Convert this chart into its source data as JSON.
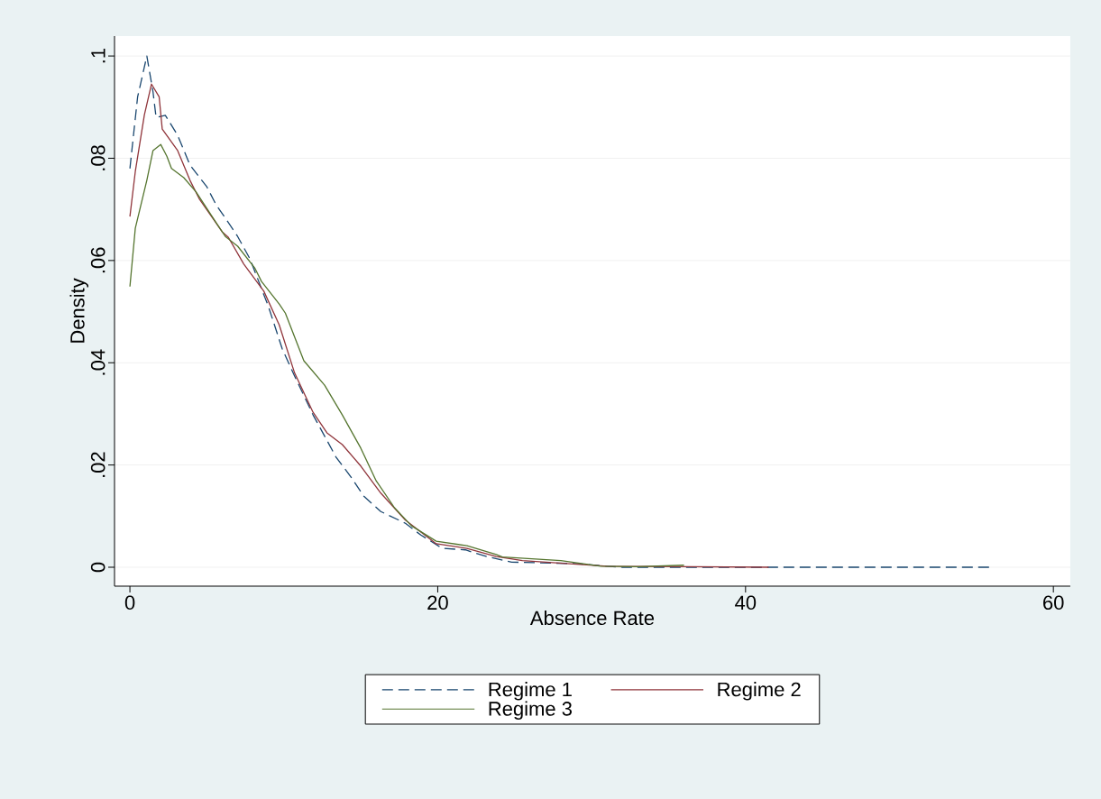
{
  "chart_data": {
    "type": "line",
    "xlabel": "Absence Rate",
    "ylabel": "Density",
    "xlim": [
      -1,
      61.1
    ],
    "ylim": [
      -0.0037,
      0.1039
    ],
    "xticks": [
      0,
      20,
      40,
      60
    ],
    "yticks": [
      {
        "value": 0,
        "label": "0"
      },
      {
        "value": 0.02,
        "label": ".02"
      },
      {
        "value": 0.04,
        "label": ".04"
      },
      {
        "value": 0.06,
        "label": ".06"
      },
      {
        "value": 0.08,
        "label": ".08"
      },
      {
        "value": 0.1,
        "label": ".1"
      }
    ],
    "grid": "y",
    "legend": "bottom",
    "series": [
      {
        "name": "Regime 1",
        "color": "#1a476f",
        "line_style": "dashed",
        "x": [
          0,
          0.5,
          1.1,
          1.5,
          1.7,
          2.3,
          3.1,
          3.9,
          5.0,
          5.6,
          6.4,
          7.0,
          7.8,
          9.0,
          9.9,
          10.7,
          11.9,
          13.4,
          14.4,
          15.2,
          16.3,
          17.9,
          18.9,
          20.3,
          21.8,
          22.2,
          23.2,
          24.8,
          29.1,
          31,
          32,
          56
        ],
        "values": [
          0.078,
          0.092,
          0.1,
          0.093,
          0.088,
          0.0884,
          0.0845,
          0.0787,
          0.0744,
          0.0709,
          0.0674,
          0.0647,
          0.0603,
          0.051,
          0.0427,
          0.0374,
          0.0298,
          0.0215,
          0.0175,
          0.0139,
          0.0109,
          0.0086,
          0.0063,
          0.0037,
          0.0034,
          0.003,
          0.0021,
          0.001,
          0.0007,
          0.0002,
          0,
          0
        ]
      },
      {
        "name": "Regime 2",
        "color": "#90353b",
        "line_style": "solid",
        "x": [
          0,
          0.35,
          0.94,
          1.4,
          1.9,
          2.1,
          3.1,
          3.9,
          4.5,
          6.0,
          6.4,
          7.4,
          8.7,
          9.7,
          10.7,
          11.9,
          12.8,
          13.8,
          15,
          16.3,
          17.9,
          19.9,
          21.9,
          23.8,
          25.5,
          29,
          31,
          41.5
        ],
        "values": [
          0.0686,
          0.0774,
          0.0885,
          0.0945,
          0.092,
          0.0857,
          0.0815,
          0.0757,
          0.0721,
          0.0656,
          0.0645,
          0.0593,
          0.054,
          0.0474,
          0.038,
          0.0303,
          0.0263,
          0.024,
          0.0198,
          0.0145,
          0.0092,
          0.0046,
          0.0037,
          0.0021,
          0.0013,
          0.0006,
          0.0002,
          0
        ]
      },
      {
        "name": "Regime 3",
        "color": "#55752f",
        "line_style": "solid",
        "x": [
          0,
          0.35,
          1.1,
          1.5,
          2.0,
          2.4,
          2.7,
          3.5,
          4.3,
          5.6,
          6.2,
          7.0,
          8.1,
          8.55,
          9.7,
          10.1,
          11.3,
          12.65,
          13.8,
          15,
          16,
          17.2,
          18.3,
          19.9,
          21.9,
          23.8,
          24.2,
          28,
          30.6,
          33,
          36
        ],
        "values": [
          0.0549,
          0.0663,
          0.0757,
          0.0815,
          0.0827,
          0.0804,
          0.078,
          0.0762,
          0.0734,
          0.0674,
          0.0647,
          0.0628,
          0.0586,
          0.0559,
          0.0515,
          0.0497,
          0.0404,
          0.0356,
          0.0298,
          0.0233,
          0.0169,
          0.0116,
          0.0081,
          0.0051,
          0.0042,
          0.0025,
          0.002,
          0.0013,
          0.0002,
          0.0001,
          0.0004
        ]
      }
    ]
  }
}
